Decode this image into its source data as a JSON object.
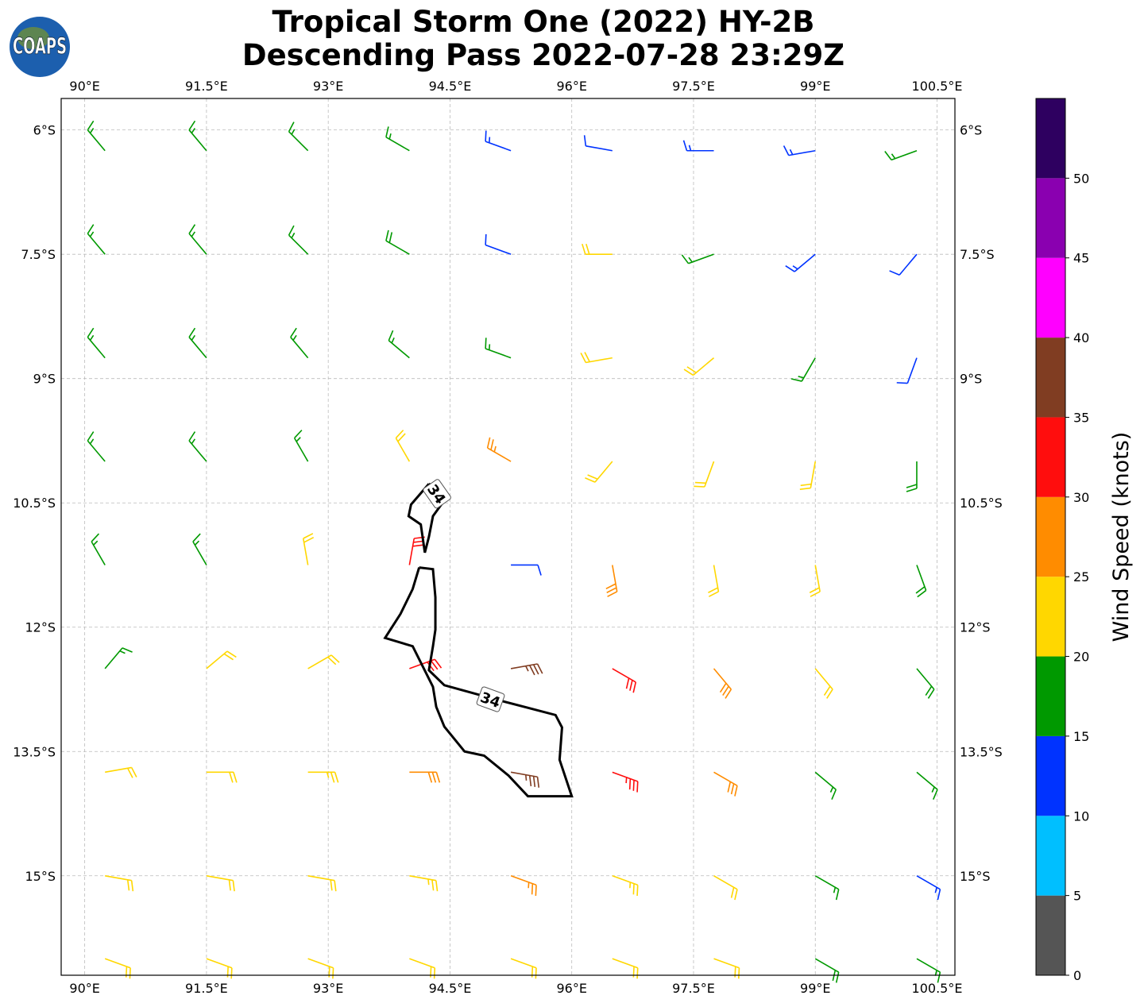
{
  "title": [
    "Tropical Storm One (2022) HY-2B",
    "Descending Pass 2022-07-28 23:29Z"
  ],
  "logo": "COAPS",
  "xlim": [
    89.71,
    100.72
  ],
  "ylim": [
    -16.2,
    -5.62
  ],
  "lon_ticks": [
    {
      "value": 90,
      "label": "90°E"
    },
    {
      "value": 91.5,
      "label": "91.5°E"
    },
    {
      "value": 93,
      "label": "93°E"
    },
    {
      "value": 94.5,
      "label": "94.5°E"
    },
    {
      "value": 96,
      "label": "96°E"
    },
    {
      "value": 97.5,
      "label": "97.5°E"
    },
    {
      "value": 99,
      "label": "99°E"
    },
    {
      "value": 100.5,
      "label": "100.5°E"
    }
  ],
  "lat_ticks": [
    {
      "value": -6,
      "label": "6°S"
    },
    {
      "value": -7.5,
      "label": "7.5°S"
    },
    {
      "value": -9,
      "label": "9°S"
    },
    {
      "value": -10.5,
      "label": "10.5°S"
    },
    {
      "value": -12,
      "label": "12°S"
    },
    {
      "value": -13.5,
      "label": "13.5°S"
    },
    {
      "value": -15,
      "label": "15°S"
    }
  ],
  "colorbar": {
    "label": "Wind Speed (knots)",
    "bounds": [
      0,
      5,
      10,
      15,
      20,
      25,
      30,
      35,
      40,
      45,
      50,
      55
    ],
    "colors": [
      "#555555",
      "#00bfff",
      "#0033ff",
      "#009900",
      "#ffd700",
      "#ff8c00",
      "#ff0d0d",
      "#803d22",
      "#ff00ff",
      "#8a00b0",
      "#2e0060"
    ],
    "ticks": [
      0,
      5,
      10,
      15,
      20,
      25,
      30,
      35,
      40,
      45,
      50
    ]
  },
  "winds": {
    "lon": [
      90.25,
      91.5,
      92.75,
      94,
      95.25,
      96.5,
      97.75,
      99,
      100.25
    ],
    "lat": [
      -6.25,
      -7.5,
      -8.75,
      -10,
      -11.25,
      -12.5,
      -13.75,
      -15,
      -16
    ],
    "speed": [
      [
        17,
        17,
        17,
        17,
        13,
        12,
        13,
        13,
        17
      ],
      [
        17,
        17,
        17,
        18,
        12,
        22,
        17,
        13,
        12
      ],
      [
        17,
        17,
        17,
        17,
        17,
        22,
        22,
        17,
        12
      ],
      [
        17,
        17,
        17,
        22,
        27,
        22,
        22,
        22,
        18
      ],
      [
        17,
        17,
        22,
        32,
        12,
        28,
        22,
        22,
        18
      ],
      [
        17,
        22,
        22,
        32,
        36,
        32,
        28,
        22,
        18
      ],
      [
        22,
        22,
        24,
        28,
        37,
        33,
        28,
        17,
        17
      ],
      [
        22,
        22,
        22,
        24,
        27,
        24,
        22,
        17,
        13
      ],
      [
        22,
        22,
        22,
        22,
        22,
        22,
        22,
        18,
        17
      ]
    ],
    "direction": [
      [
        320,
        320,
        315,
        300,
        290,
        280,
        270,
        260,
        250
      ],
      [
        320,
        320,
        315,
        300,
        290,
        270,
        250,
        230,
        220
      ],
      [
        320,
        320,
        320,
        310,
        290,
        260,
        230,
        210,
        200
      ],
      [
        320,
        320,
        330,
        330,
        300,
        220,
        200,
        190,
        180
      ],
      [
        330,
        330,
        350,
        10,
        90,
        170,
        170,
        170,
        160
      ],
      [
        40,
        50,
        60,
        70,
        80,
        120,
        140,
        140,
        140
      ],
      [
        80,
        90,
        90,
        90,
        100,
        110,
        120,
        130,
        130
      ],
      [
        100,
        100,
        100,
        100,
        110,
        110,
        120,
        120,
        120
      ],
      [
        110,
        110,
        110,
        110,
        110,
        110,
        110,
        120,
        120
      ]
    ]
  },
  "contour": {
    "label": "34",
    "lines": [
      {
        "lon": [
          94.24,
          94.02,
          93.99,
          94.14,
          94.19,
          94.24,
          94.29,
          94.43,
          94.33,
          94.24
        ],
        "lat": [
          -10.27,
          -10.52,
          -10.66,
          -10.76,
          -11.1,
          -10.91,
          -10.66,
          -10.47,
          -10.32,
          -10.27
        ]
      },
      {
        "lon": [
          94.12,
          94.29,
          94.32,
          94.32,
          94.29,
          94.24,
          94.43,
          95.02,
          95.8,
          95.88,
          95.85,
          96.0,
          95.8,
          95.46,
          95.22,
          94.92,
          94.68,
          94.43,
          94.33,
          94.29,
          94.04,
          93.7,
          93.89,
          94.04,
          94.12
        ],
        "lat": [
          -11.28,
          -11.3,
          -11.64,
          -12.03,
          -12.23,
          -12.52,
          -12.7,
          -12.86,
          -13.06,
          -13.21,
          -13.6,
          -14.04,
          -14.04,
          -14.04,
          -13.79,
          -13.55,
          -13.5,
          -13.2,
          -12.96,
          -12.72,
          -12.23,
          -12.13,
          -11.84,
          -11.54,
          -11.28
        ]
      }
    ],
    "label_positions": [
      {
        "lon": 94.34,
        "lat": -10.39,
        "angle": 55
      },
      {
        "lon": 95.0,
        "lat": -12.87,
        "angle": 20
      }
    ]
  }
}
